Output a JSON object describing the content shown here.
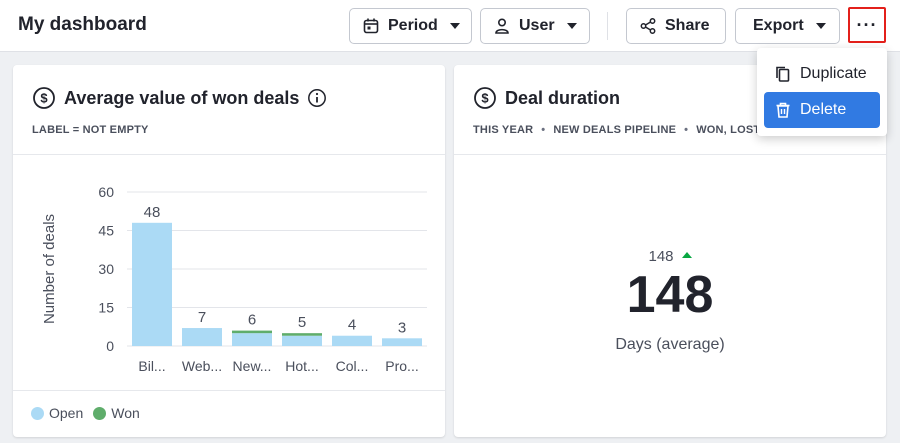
{
  "header": {
    "title": "My dashboard",
    "period_label": "Period",
    "user_label": "User",
    "share_label": "Share",
    "export_label": "Export",
    "more_label": "···"
  },
  "menu": {
    "items": [
      {
        "label": "Duplicate",
        "icon": "copy-icon"
      },
      {
        "label": "Delete",
        "icon": "trash-icon",
        "highlighted": true
      }
    ]
  },
  "cards": [
    {
      "title": "Average value of won deals",
      "icon": "dollar-circle-icon",
      "info_icon": "info-icon",
      "filters": [
        "LABEL = NOT EMPTY"
      ],
      "legend": [
        {
          "label": "Open",
          "color": "#abdaf5"
        },
        {
          "label": "Won",
          "color": "#5fad6b"
        }
      ]
    },
    {
      "title": "Deal duration",
      "icon": "dollar-circle-icon",
      "filters": [
        "THIS YEAR",
        "NEW DEALS PIPELINE",
        "WON, LOST"
      ],
      "separator": "•",
      "kpi_small": "148",
      "kpi_value": "148",
      "kpi_label": "Days (average)",
      "trend": "up"
    }
  ],
  "chart_data": {
    "type": "bar",
    "categories": [
      "Bil...",
      "Web...",
      "New...",
      "Hot...",
      "Col...",
      "Pro..."
    ],
    "series": [
      {
        "name": "Open",
        "values": [
          48,
          7,
          5,
          4,
          4,
          3
        ],
        "color": "#abdaf5"
      },
      {
        "name": "Won",
        "values": [
          0,
          0,
          1,
          1,
          0,
          0
        ],
        "color": "#5fad6b"
      }
    ],
    "data_labels": [
      "48",
      "7",
      "6",
      "5",
      "4",
      "3"
    ],
    "totals": [
      48,
      7,
      6,
      5,
      4,
      3
    ],
    "ylabel": "Number of deals",
    "yticks": [
      0,
      15,
      30,
      45,
      60
    ],
    "ylim": [
      0,
      60
    ],
    "grid": true
  }
}
